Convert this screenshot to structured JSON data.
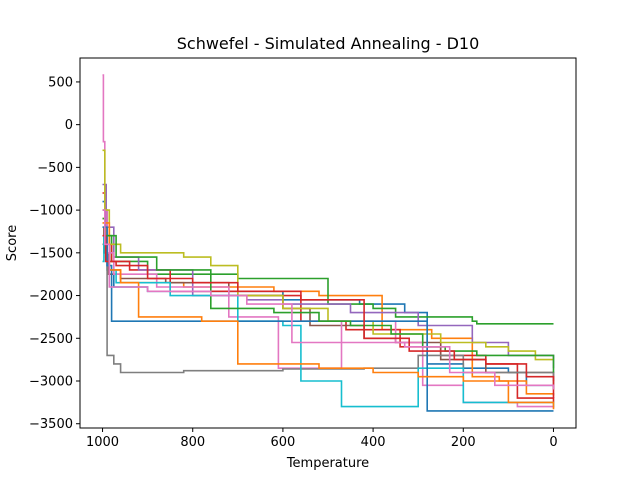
{
  "chart_data": {
    "type": "line",
    "title": "Schwefel - Simulated Annealing - D10",
    "xlabel": "Temperature",
    "ylabel": "Score",
    "xlim": [
      1050,
      -50
    ],
    "ylim": [
      -3550,
      780
    ],
    "x_ticks": [
      1000,
      800,
      600,
      400,
      200,
      0
    ],
    "x_tick_labels": [
      "1000",
      "800",
      "600",
      "400",
      "200",
      "0"
    ],
    "y_ticks": [
      500,
      0,
      -500,
      -1000,
      -1500,
      -2000,
      -2500,
      -3000,
      -3500
    ],
    "y_tick_labels": [
      "500",
      "0",
      "−500",
      "−1000",
      "−1500",
      "−2000",
      "−2500",
      "−3000",
      "−3500"
    ],
    "grid": false,
    "legend": "none",
    "series": [
      {
        "color": "#1f77b4",
        "x": [
          1000,
          995,
          990,
          975,
          900,
          600,
          430,
          330,
          280,
          200,
          100,
          60,
          0
        ],
        "y": [
          -900,
          -1500,
          -1700,
          -1900,
          -1950,
          -2050,
          -2100,
          -2200,
          -2800,
          -2850,
          -2900,
          -3050,
          -3100
        ]
      },
      {
        "color": "#ff7f0e",
        "x": [
          1000,
          993,
          985,
          960,
          820,
          620,
          520,
          380,
          270,
          180,
          120,
          60,
          0
        ],
        "y": [
          -1100,
          -1550,
          -1700,
          -1850,
          -1900,
          -1950,
          -2000,
          -2400,
          -2500,
          -2950,
          -3000,
          -3150,
          -3170
        ]
      },
      {
        "color": "#2ca02c",
        "x": [
          1000,
          990,
          980,
          900,
          700,
          500,
          400,
          350,
          180,
          170,
          0
        ],
        "y": [
          -1000,
          -1300,
          -1600,
          -1750,
          -1800,
          -2100,
          -2150,
          -2250,
          -2300,
          -2330,
          -2330
        ]
      },
      {
        "color": "#d62728",
        "x": [
          1000,
          995,
          980,
          940,
          850,
          700,
          560,
          460,
          340,
          250,
          150,
          80,
          0
        ],
        "y": [
          -800,
          -1400,
          -1600,
          -1700,
          -1950,
          -2000,
          -2300,
          -2400,
          -2600,
          -2700,
          -2800,
          -3200,
          -3250
        ]
      },
      {
        "color": "#9467bd",
        "x": [
          1000,
          992,
          975,
          920,
          800,
          680,
          600,
          450,
          300,
          180,
          100,
          0
        ],
        "y": [
          -700,
          -1200,
          -1550,
          -1700,
          -2000,
          -2050,
          -2100,
          -2200,
          -2350,
          -2550,
          -2700,
          -2850
        ]
      },
      {
        "color": "#8c564b",
        "x": [
          1000,
          997,
          988,
          960,
          860,
          720,
          600,
          540,
          420,
          350,
          250,
          150,
          0
        ],
        "y": [
          -1200,
          -1500,
          -1750,
          -1800,
          -1850,
          -2000,
          -2150,
          -2350,
          -2500,
          -2550,
          -2750,
          -2900,
          -3000
        ]
      },
      {
        "color": "#e377c2",
        "x": [
          1000,
          998,
          995,
          990,
          975,
          880,
          720,
          610,
          470,
          350,
          290,
          200,
          80,
          0
        ],
        "y": [
          580,
          -200,
          -1000,
          -1500,
          -1750,
          -1900,
          -2250,
          -2850,
          -2300,
          -2550,
          -3050,
          -3250,
          -3300,
          -3320
        ]
      },
      {
        "color": "#7f7f7f",
        "x": [
          1000,
          990,
          975,
          960,
          940,
          820,
          600,
          420,
          300,
          200,
          0
        ],
        "y": [
          -1400,
          -2700,
          -2800,
          -2900,
          -2900,
          -2880,
          -2860,
          -2850,
          -2700,
          -2900,
          -3100
        ]
      },
      {
        "color": "#bcbd22",
        "x": [
          1000,
          995,
          985,
          960,
          820,
          760,
          700,
          600,
          500,
          400,
          250,
          150,
          100,
          40,
          0
        ],
        "y": [
          -300,
          -1000,
          -1400,
          -1500,
          -1550,
          -1650,
          -2000,
          -2150,
          -2300,
          -2450,
          -2550,
          -2600,
          -2650,
          -2750,
          -2750
        ]
      },
      {
        "color": "#17becf",
        "x": [
          1000,
          997,
          985,
          970,
          850,
          700,
          600,
          560,
          470,
          360,
          300,
          200,
          0
        ],
        "y": [
          -1600,
          -1300,
          -1700,
          -1850,
          -2000,
          -2300,
          -2350,
          -3000,
          -3300,
          -3300,
          -2850,
          -3250,
          -3300
        ]
      },
      {
        "color": "#1f77b4",
        "x": [
          1000,
          990,
          980,
          880,
          720,
          640,
          560,
          480,
          380,
          280,
          220,
          120,
          0
        ],
        "y": [
          -1200,
          -1650,
          -2300,
          -2300,
          -2300,
          -2300,
          -2300,
          -2300,
          -2300,
          -3350,
          -3350,
          -3350,
          -3350
        ]
      },
      {
        "color": "#ff7f0e",
        "x": [
          1000,
          985,
          960,
          920,
          780,
          700,
          610,
          520,
          400,
          300,
          200,
          100,
          0
        ],
        "y": [
          -1150,
          -1700,
          -1850,
          -2250,
          -2300,
          -2800,
          -2800,
          -2850,
          -2900,
          -2950,
          -3000,
          -3250,
          -3330
        ]
      },
      {
        "color": "#2ca02c",
        "x": [
          1000,
          995,
          970,
          880,
          760,
          620,
          520,
          450,
          360,
          290,
          240,
          170,
          0
        ],
        "y": [
          -1100,
          -1300,
          -1550,
          -1700,
          -2150,
          -2200,
          -2300,
          -2350,
          -2450,
          -2600,
          -2650,
          -2700,
          -2900
        ]
      },
      {
        "color": "#d62728",
        "x": [
          1000,
          993,
          970,
          900,
          800,
          700,
          560,
          420,
          320,
          220,
          150,
          60,
          0
        ],
        "y": [
          -1300,
          -1600,
          -1650,
          -1800,
          -1850,
          -1950,
          -2050,
          -2500,
          -2650,
          -2750,
          -2800,
          -2950,
          -3200
        ]
      },
      {
        "color": "#e377c2",
        "x": [
          1000,
          995,
          985,
          900,
          760,
          680,
          580,
          430,
          330,
          230,
          130,
          0
        ],
        "y": [
          -1000,
          -1400,
          -1900,
          -1950,
          -2000,
          -2100,
          -2550,
          -2550,
          -2600,
          -2900,
          -3050,
          -3100
        ]
      }
    ]
  }
}
